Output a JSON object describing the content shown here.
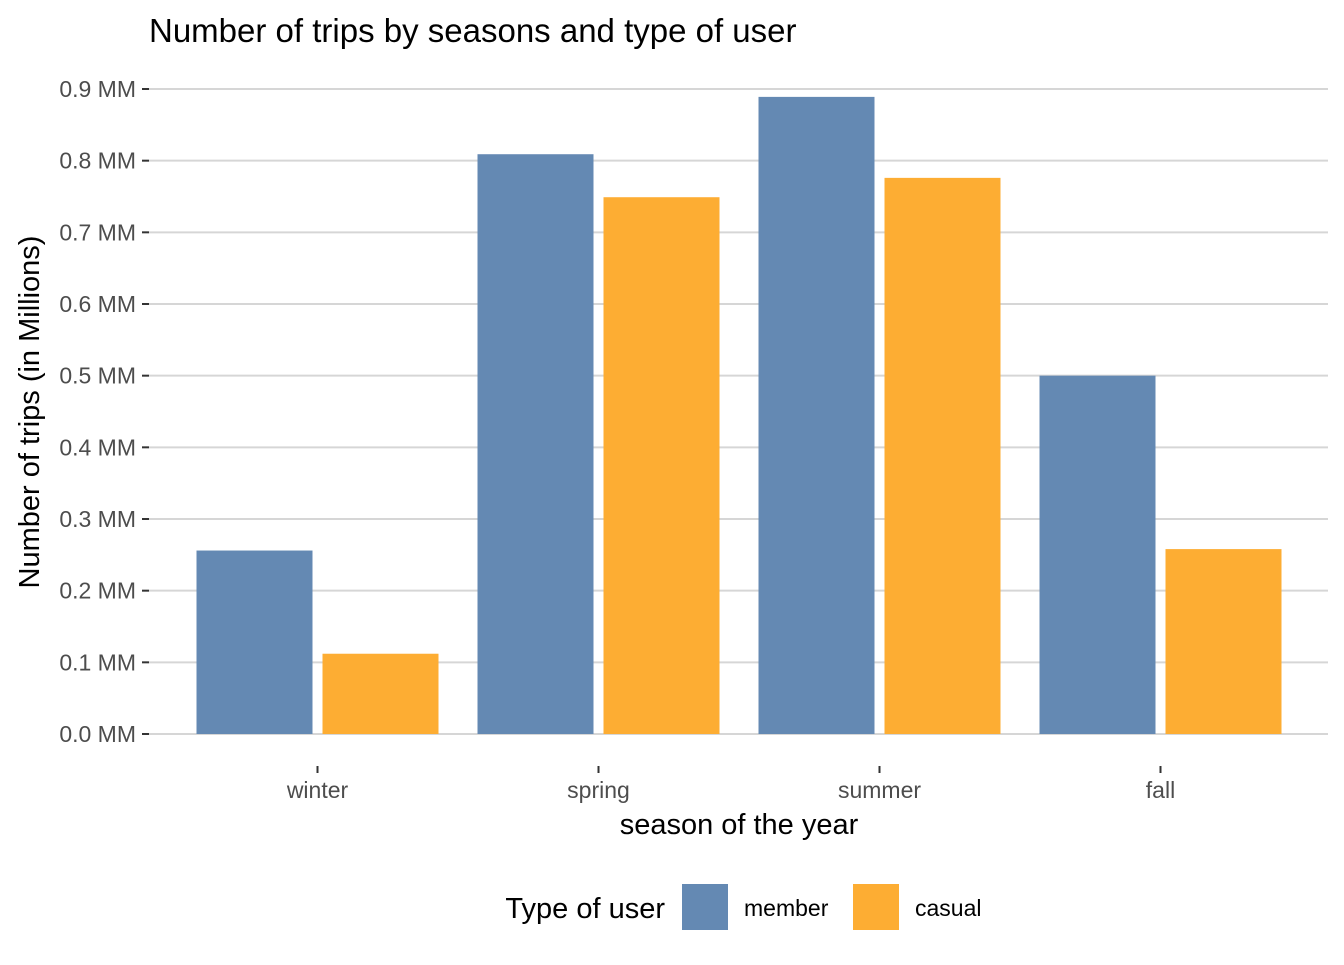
{
  "chart_data": {
    "type": "bar",
    "title": "Number of trips by seasons and type of user",
    "xlabel": "season of the year",
    "ylabel": "Number of trips (in Millions)",
    "categories": [
      "winter",
      "spring",
      "summer",
      "fall"
    ],
    "series": [
      {
        "name": "member",
        "color": "#6489B3",
        "values": [
          0.256,
          0.809,
          0.889,
          0.5
        ]
      },
      {
        "name": "casual",
        "color": "#FDAD33",
        "values": [
          0.112,
          0.749,
          0.776,
          0.258
        ]
      }
    ],
    "ylim": [
      0,
      0.9
    ],
    "yticks": [
      0.0,
      0.1,
      0.2,
      0.3,
      0.4,
      0.5,
      0.6,
      0.7,
      0.8,
      0.9
    ],
    "ytick_labels": [
      "0.0 MM",
      "0.1 MM",
      "0.2 MM",
      "0.3 MM",
      "0.4 MM",
      "0.5 MM",
      "0.6 MM",
      "0.7 MM",
      "0.8 MM",
      "0.9 MM"
    ],
    "grid": true,
    "legend": {
      "title": "Type of user",
      "position": "bottom"
    }
  }
}
